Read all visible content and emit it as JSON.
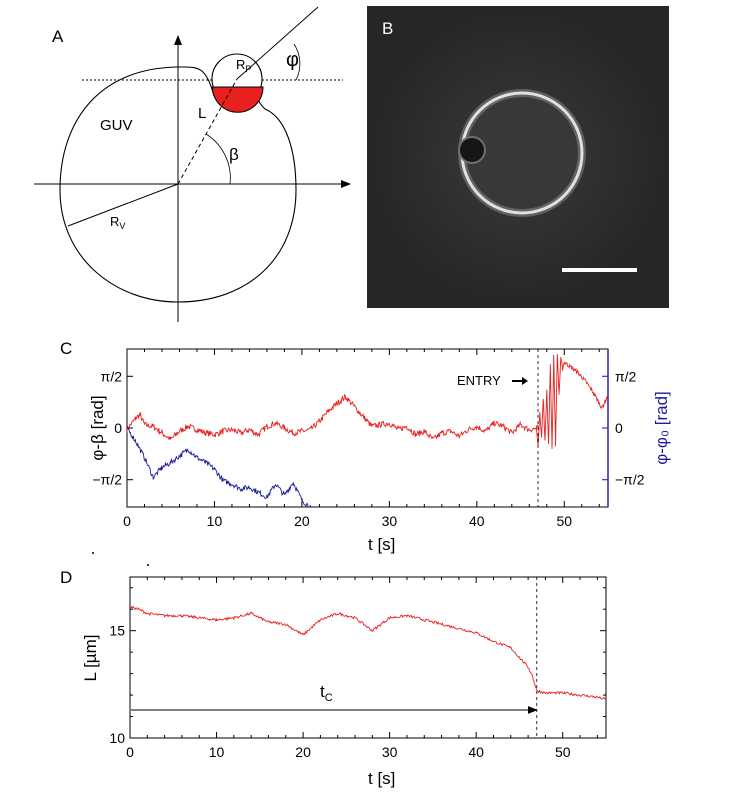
{
  "colors": {
    "red": "#e8201e",
    "blue": "#1a1a9a",
    "black": "#000000",
    "micrograph_bg": "#222222"
  },
  "panelA": {
    "label": "A",
    "guv": "GUV",
    "rp": "R",
    "rp_sub": "P",
    "rv": "R",
    "rv_sub": "V",
    "phi": "φ",
    "beta": "β",
    "l": "L"
  },
  "panelB": {
    "label": "B"
  },
  "chart_data": [
    {
      "panel": "C",
      "type": "line",
      "xlabel": "t [s]",
      "ylabel_left": "φ-β [rad]",
      "ylabel_right": "φ-φ₀ [rad]",
      "xlim": [
        0,
        55
      ],
      "ylim": [
        -2.4,
        2.4
      ],
      "xticks": [
        0,
        10,
        20,
        30,
        40,
        50
      ],
      "yticks": [
        {
          "value": 1.571,
          "label": "π/2"
        },
        {
          "value": 0,
          "label": "0"
        },
        {
          "value": -1.571,
          "label": "−π/2"
        }
      ],
      "annotation": "ENTRY",
      "vline_t": 47,
      "series": [
        {
          "name": "φ-β",
          "color": "#e8201e",
          "x": [
            0,
            1,
            1.5,
            2,
            3,
            4,
            5,
            6,
            7,
            8,
            9,
            10,
            11,
            12,
            13,
            14,
            15,
            16,
            17,
            18,
            19,
            20,
            21,
            22,
            23,
            24,
            25,
            26,
            27,
            28,
            29,
            30,
            31,
            32,
            33,
            34,
            35,
            36,
            37,
            38,
            39,
            40,
            41,
            42,
            43,
            44,
            45,
            46,
            47
          ],
          "y": [
            -0.05,
            0.3,
            0.4,
            0.1,
            0.05,
            -0.15,
            -0.35,
            -0.1,
            0.05,
            -0.05,
            -0.15,
            -0.2,
            -0.1,
            -0.05,
            -0.15,
            -0.05,
            -0.2,
            0.05,
            0.15,
            0.0,
            -0.15,
            -0.1,
            -0.05,
            0.2,
            0.5,
            0.75,
            0.95,
            0.65,
            0.35,
            0.05,
            0.1,
            0.15,
            -0.05,
            0.05,
            -0.2,
            -0.1,
            -0.35,
            -0.15,
            -0.1,
            -0.25,
            -0.05,
            0.05,
            -0.1,
            0.15,
            0.05,
            -0.15,
            0.1,
            -0.05,
            0.0
          ]
        },
        {
          "name": "φ-φ₀",
          "color": "#1a1a9a",
          "x": [
            0,
            1,
            2,
            3,
            4,
            5,
            6,
            7,
            8,
            9,
            10,
            11,
            12,
            13,
            14,
            15,
            16,
            17,
            18,
            19,
            20,
            21
          ],
          "y": [
            0.0,
            -0.4,
            -0.9,
            -1.5,
            -1.2,
            -1.05,
            -0.85,
            -0.65,
            -0.9,
            -1.05,
            -1.25,
            -1.6,
            -1.7,
            -1.85,
            -1.8,
            -1.95,
            -2.1,
            -1.7,
            -2.05,
            -1.65,
            -2.2,
            -2.4
          ]
        }
      ],
      "entry_oscillation": {
        "x": [
          46.8,
          47.0,
          47.2,
          47.4,
          47.6,
          47.8,
          48.0,
          48.2,
          48.4,
          48.6,
          48.8,
          49.0,
          49.2,
          49.4,
          49.6,
          49.8,
          50.0,
          50.5,
          51.5,
          52.5,
          53.5,
          54.3,
          55.0
        ],
        "y": [
          0.0,
          -0.6,
          0.5,
          -0.3,
          0.9,
          -0.4,
          1.2,
          -0.5,
          1.9,
          -0.6,
          2.2,
          -0.5,
          2.3,
          1.0,
          2.1,
          1.8,
          2.0,
          1.9,
          1.7,
          1.4,
          1.0,
          0.6,
          1.0
        ]
      }
    },
    {
      "panel": "D",
      "type": "line",
      "xlabel": "t [s]",
      "ylabel": "L [µm]",
      "xlim": [
        0,
        55
      ],
      "ylim": [
        10,
        17.5
      ],
      "xticks": [
        0,
        10,
        20,
        30,
        40,
        50
      ],
      "yticks": [
        10,
        15
      ],
      "annotation": "t",
      "annotation_sub": "C",
      "vline_t": 47,
      "series": [
        {
          "name": "L",
          "color": "#e8201e",
          "x": [
            0,
            1,
            2,
            4,
            6,
            8,
            10,
            12,
            14,
            16,
            18,
            20,
            22,
            24,
            26,
            28,
            30,
            32,
            34,
            36,
            38,
            40,
            42,
            44,
            46,
            46.5,
            47,
            48,
            50,
            52,
            54,
            55
          ],
          "y": [
            16.1,
            16.0,
            15.8,
            15.7,
            15.7,
            15.6,
            15.5,
            15.6,
            15.8,
            15.4,
            15.3,
            14.8,
            15.5,
            15.8,
            15.6,
            15.0,
            15.6,
            15.7,
            15.5,
            15.3,
            15.1,
            14.9,
            14.5,
            14.2,
            13.3,
            12.9,
            12.2,
            12.1,
            12.1,
            12.0,
            11.9,
            11.8
          ]
        }
      ]
    }
  ]
}
